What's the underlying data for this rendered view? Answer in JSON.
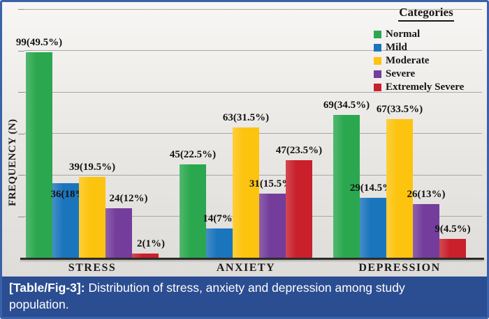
{
  "figure": {
    "caption_prefix": "[Table/Fig-3]:",
    "caption_text": "Distribution of stress, anxiety and depression among study population."
  },
  "chart_data": {
    "type": "bar",
    "title": "",
    "xlabel": "",
    "ylabel": "FREQUENCY (N)",
    "ylim": [
      0,
      120
    ],
    "gridline_step": 20,
    "grid": true,
    "y_tick_labels_shown": false,
    "legend_title": "Categories",
    "legend_position": "top-right",
    "categories": [
      "STRESS",
      "ANXIETY",
      "DEPRESSION"
    ],
    "series": [
      {
        "name": "Normal",
        "color": "#2ba84f",
        "values": [
          99,
          45,
          69
        ],
        "labels": [
          "99(49.5%)",
          "45(22.5%)",
          "69(34.5%)"
        ]
      },
      {
        "name": "Mild",
        "color": "#1b75bd",
        "values": [
          36,
          14,
          29
        ],
        "labels": [
          "36(18%)",
          "14(7%)",
          "29(14.5%)"
        ]
      },
      {
        "name": "Moderate",
        "color": "#fdc40f",
        "values": [
          39,
          63,
          67
        ],
        "labels": [
          "39(19.5%)",
          "63(31.5%)",
          "67(33.5%)"
        ]
      },
      {
        "name": "Severe",
        "color": "#743d9b",
        "values": [
          24,
          31,
          26
        ],
        "labels": [
          "24(12%)",
          "31(15.5%)",
          "26(13%)"
        ]
      },
      {
        "name": "Extremely Severe",
        "color": "#c9202b",
        "values": [
          2,
          47,
          9
        ],
        "labels": [
          "2(1%)",
          "47(23.5%)",
          "9(4.5%)"
        ]
      }
    ],
    "label_offsets": {
      "1-0": {
        "dx": 6,
        "dy": -30
      },
      "3-0": {
        "dx": 14,
        "dy": 0
      },
      "4-0": {
        "dx": 8,
        "dy": 0
      }
    },
    "colors": {
      "caption_bg": "#2b4d91",
      "frame_border": "#3a62ab",
      "gridline": "#a9a7a5",
      "axis_line": "#2d2b29",
      "label_text": "#121212"
    }
  }
}
